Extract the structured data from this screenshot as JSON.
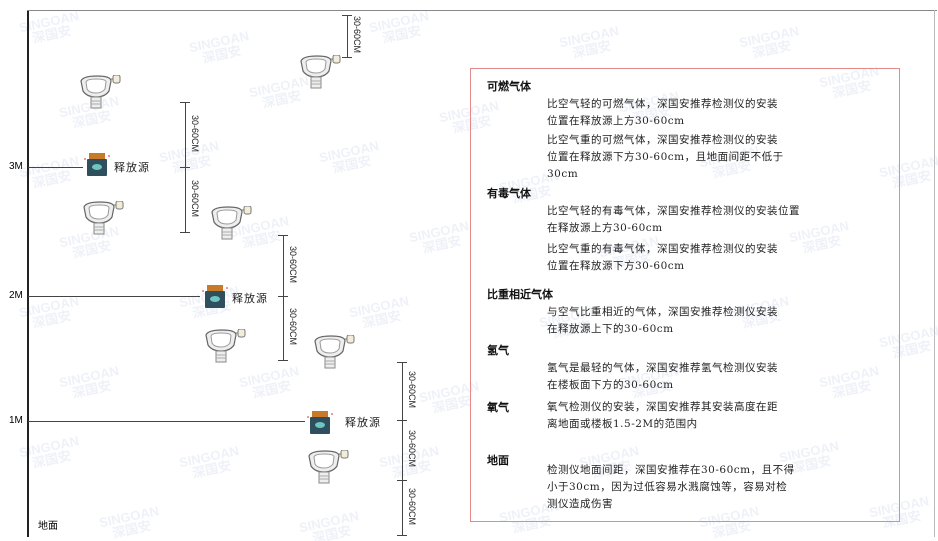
{
  "levels": {
    "m3": "3M",
    "m2": "2M",
    "m1": "1M",
    "ground": "地面"
  },
  "source_label": "释放源",
  "dimension_label": "30-60CM",
  "watermark": "SINGOAN 深国安",
  "colors": {
    "box_border": "#e58a8a",
    "source_body": "#2f4f5f",
    "source_cap": "#c77a2a"
  },
  "panel": {
    "sections": [
      {
        "heading": "可燃气体",
        "paragraphs": [
          "比空气轻的可燃气体，深国安推荐检测仪的安装\n位置在释放源上方30-60cm",
          "比空气重的可燃气体，深国安推荐检测仪的安装\n位置在释放源下方30-60cm，且地面间距不低于\n30cm"
        ]
      },
      {
        "heading": "有毒气体",
        "paragraphs": [
          "比空气轻的有毒气体，深国安推荐检测仪的安装位置\n在释放源上方30-60cm",
          "比空气重的有毒气体，深国安推荐检测仪的安装\n位置在释放源下方30-60cm"
        ]
      },
      {
        "heading": "比重相近气体",
        "paragraphs": [
          "与空气比重相近的气体，深国安推荐检测仪安装\n在释放源上下的30-60cm"
        ]
      },
      {
        "heading": "氢气",
        "paragraphs": [
          "氢气是最轻的气体，深国安推荐氢气检测仪安装\n在楼板面下方的30-60cm"
        ]
      },
      {
        "heading": "氧气",
        "paragraphs": [
          "氧气检测仪的安装，深国安推荐其安装高度在距\n离地面或楼板1.5-2M的范围内"
        ]
      },
      {
        "heading": "地面",
        "paragraphs": [
          "检测仪地面间距，深国安推荐在30-60cm，且不得\n小于30cm，因为过低容易水溅腐蚀等，容易对检\n测仪造成伤害"
        ]
      }
    ]
  }
}
